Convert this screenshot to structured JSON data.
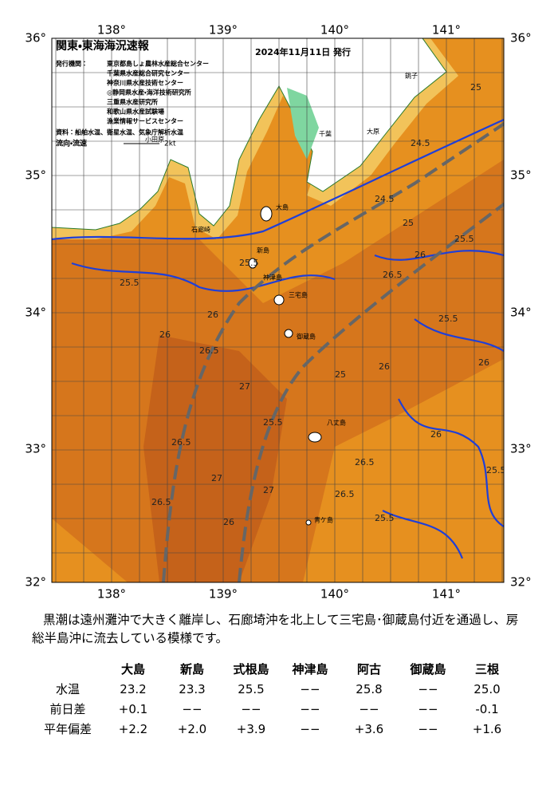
{
  "map": {
    "title": "関東・東海海況速報",
    "date": "2024年11月11日 発行",
    "issuer_label": "発行機関：",
    "issuers": [
      "東京都島しょ農林水産総合センター",
      "千葉県水産総合研究センター",
      "神奈川県水産技術センター",
      "◎静岡県水産・海洋技術研究所",
      "三重県水産研究所",
      "和歌山県水産試験場",
      "漁業情報サービスセンター"
    ],
    "source": "資料：船舶水温、衛星水温、気象庁解析水温",
    "flow_legend": "流向・流速",
    "flow_unit": "2kt",
    "lon_labels": [
      "138°",
      "139°",
      "140°",
      "141°"
    ],
    "lat_labels": [
      "36°",
      "35°",
      "34°",
      "33°",
      "32°"
    ],
    "places": [
      "大島",
      "三宅島",
      "御蔵島",
      "八丈島",
      "青ケ島",
      "新島",
      "神津島",
      "石廊崎",
      "小田原",
      "千葉",
      "銚子",
      "大原"
    ],
    "contour_labels": [
      "25.5",
      "25.5",
      "26",
      "26",
      "26.5",
      "26.5",
      "27",
      "27",
      "26.5",
      "26",
      "25.5",
      "25",
      "24.5",
      "25",
      "26",
      "26.5",
      "26",
      "25.5",
      "26.5",
      "25.5",
      "26",
      "27",
      "26.5",
      "25.5",
      "26",
      "25",
      "25.5",
      "24.5"
    ]
  },
  "summary": "黒潮は遠州灘沖で大きく離岸し、石廊埼沖を北上して三宅島･御蔵島付近を通過し、房総半島沖に流去している模様です。",
  "table": {
    "columns": [
      "大島",
      "新島",
      "式根島",
      "神津島",
      "阿古",
      "御蔵島",
      "三根"
    ],
    "rows": [
      [
        "水温",
        "23.2",
        "23.3",
        "25.5",
        "−−",
        "25.8",
        "−−",
        "25.0"
      ],
      [
        "前日差",
        "+0.1",
        "−−",
        "−−",
        "−−",
        "−−",
        "−−",
        "-0.1"
      ],
      [
        "平年偏差",
        "+2.2",
        "+2.0",
        "+3.9",
        "−−",
        "+3.6",
        "−−",
        "+1.6"
      ]
    ]
  }
}
